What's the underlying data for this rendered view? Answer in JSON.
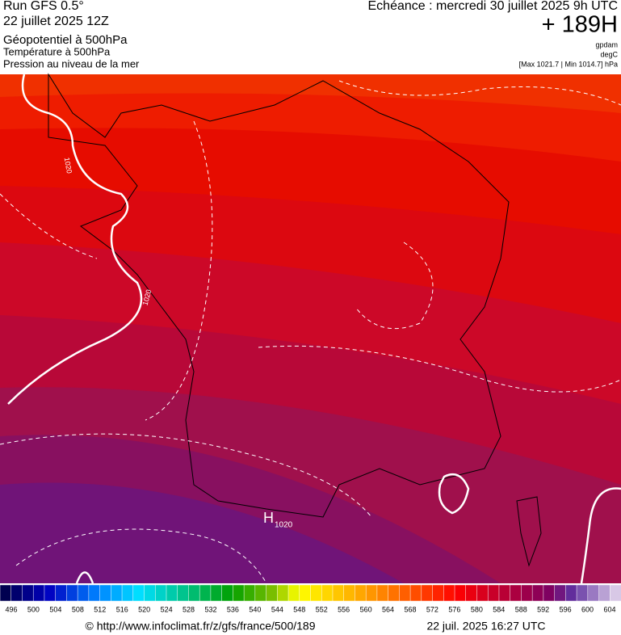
{
  "header": {
    "run": "Run GFS 0.5°",
    "run_date": "22 juillet 2025 12Z",
    "field1": "Géopotentiel à 500hPa",
    "field2": "Température à 500hPa",
    "field3": "Pression au niveau de la mer",
    "valid": "Echéance : mercredi 30 juillet 2025 9h UTC",
    "lead": "+ 189H",
    "unit1": "gpdam",
    "unit2": "degC",
    "range": "[Max 1021.7 | Min 1014.7] hPa"
  },
  "map": {
    "isobar_labels": [
      "1020",
      "1020"
    ],
    "high": "H",
    "high_value": "1020"
  },
  "colorbar": {
    "ticks": [
      496,
      500,
      504,
      508,
      512,
      516,
      520,
      524,
      528,
      532,
      536,
      540,
      544,
      548,
      552,
      556,
      560,
      564,
      568,
      572,
      576,
      580,
      584,
      588,
      592,
      596,
      600,
      604
    ]
  },
  "footer": {
    "source": "© http://www.infoclimat.fr/z/gfs/france/500/189",
    "generated": "22 juil. 2025 16:27 UTC"
  }
}
